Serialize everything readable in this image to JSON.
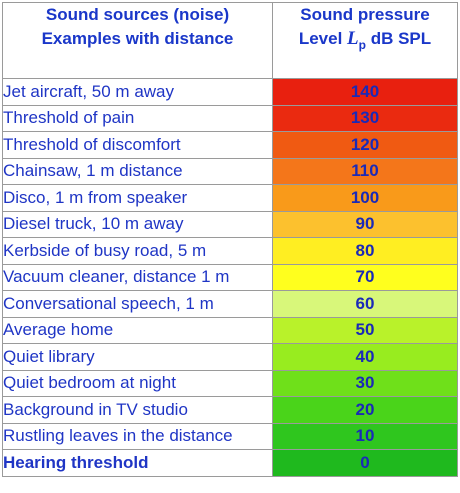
{
  "header": {
    "source_line1": "Sound sources (noise)",
    "source_line2": "Examples with distance",
    "level_line1": "Sound pressure",
    "level_prefix": "Level ",
    "level_symbol": "L",
    "level_subscript": "p",
    "level_suffix": " dB SPL"
  },
  "rows": [
    {
      "source": "Jet aircraft, 50 m away",
      "level": "140",
      "color": "#e8200f"
    },
    {
      "source": "Threshold of pain",
      "level": "130",
      "color": "#ea2a10"
    },
    {
      "source": "Threshold of discomfort",
      "level": "120",
      "color": "#f05a12"
    },
    {
      "source": "Chainsaw, 1 m distance",
      "level": "110",
      "color": "#f4761a"
    },
    {
      "source": "Disco, 1 m from speaker",
      "level": "100",
      "color": "#f99a1a"
    },
    {
      "source": "Diesel truck, 10 m away",
      "level": "90",
      "color": "#fcc12e"
    },
    {
      "source": "Kerbside of busy road, 5 m",
      "level": "80",
      "color": "#ffee22"
    },
    {
      "source": "Vacuum cleaner, distance 1 m",
      "level": "70",
      "color": "#ffff1e"
    },
    {
      "source": "Conversational speech, 1 m",
      "level": "60",
      "color": "#d8f77a"
    },
    {
      "source": "Average home",
      "level": "50",
      "color": "#b9f22a"
    },
    {
      "source": "Quiet library",
      "level": "40",
      "color": "#98ec1f"
    },
    {
      "source": "Quiet bedroom at night",
      "level": "30",
      "color": "#6fe01a"
    },
    {
      "source": "Background in TV studio",
      "level": "20",
      "color": "#4ad41a"
    },
    {
      "source": "Rustling leaves in the distance",
      "level": "10",
      "color": "#2fc61e"
    },
    {
      "source": "Hearing threshold",
      "level": "0",
      "color": "#1fb91e",
      "bold": true
    }
  ]
}
